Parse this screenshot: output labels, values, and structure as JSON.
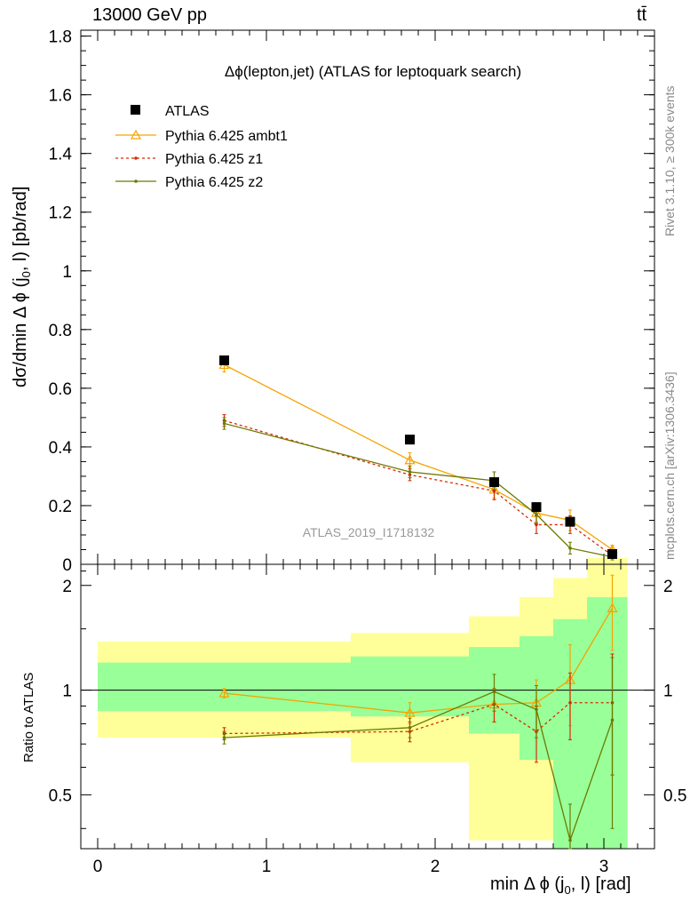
{
  "header": {
    "energy": "13000 GeV pp",
    "process": "tt̄",
    "rivet": "Rivet 3.1.10, ≥ 300k events",
    "site": "mcplots.cern.ch [arXiv:1306.3436]"
  },
  "chart_data": {
    "type": "line",
    "title": "Δϕ(lepton,jet) (ATLAS for leptoquark search)",
    "analysis": "ATLAS_2019_I1718132",
    "xlabel": "min Δ ϕ (j0, l) [rad]",
    "ylabel": "dσ/dmin Δ ϕ (j0, l) [pb/rad]",
    "ratio_ylabel": "Ratio to ATLAS",
    "xlim": [
      -0.1,
      3.3
    ],
    "ylim": [
      0,
      1.82
    ],
    "ratio_ylim": [
      0.35,
      2.3
    ],
    "x_ticks": [
      "0",
      "1",
      "2",
      "3"
    ],
    "y_ticks": [
      "0",
      "0.2",
      "0.4",
      "0.6",
      "0.8",
      "1",
      "1.2",
      "1.4",
      "1.6",
      "1.8"
    ],
    "ratio_ticks": [
      "0.5",
      "1",
      "2"
    ],
    "bins": [
      [
        0,
        1.5
      ],
      [
        1.5,
        2.2
      ],
      [
        2.2,
        2.5
      ],
      [
        2.5,
        2.7
      ],
      [
        2.7,
        2.9
      ],
      [
        2.9,
        3.14
      ]
    ],
    "x": [
      0.75,
      1.85,
      2.35,
      2.6,
      2.8,
      3.05
    ],
    "data": {
      "name": "ATLAS",
      "values": [
        0.695,
        0.425,
        0.28,
        0.195,
        0.145,
        0.035
      ],
      "band_green": [
        [
          0.87,
          1.2
        ],
        [
          0.84,
          1.25
        ],
        [
          0.75,
          1.33
        ],
        [
          0.63,
          1.43
        ],
        [
          0.35,
          1.6
        ],
        [
          0.35,
          1.85
        ]
      ],
      "band_yellow": [
        [
          0.73,
          1.38
        ],
        [
          0.62,
          1.46
        ],
        [
          0.37,
          1.63
        ],
        [
          0.37,
          1.85
        ],
        [
          0.35,
          2.1
        ],
        [
          0.35,
          2.4
        ]
      ]
    },
    "series": [
      {
        "name": "Pythia 6.425 ambt1",
        "color": "#f5a300",
        "values": [
          0.68,
          0.355,
          0.255,
          0.175,
          0.15,
          0.05
        ],
        "errors": [
          0.025,
          0.025,
          0.03,
          0.03,
          0.035,
          0.015
        ],
        "ratio": [
          0.98,
          0.86,
          0.91,
          0.92,
          1.07,
          1.72
        ],
        "ratio_err": [
          0.03,
          0.06,
          0.1,
          0.15,
          0.28,
          0.42
        ]
      },
      {
        "name": "Pythia 6.425 z1",
        "color": "#d42a00",
        "values": [
          0.49,
          0.305,
          0.25,
          0.135,
          0.135,
          0.03
        ],
        "errors": [
          0.02,
          0.02,
          0.03,
          0.03,
          0.03,
          0.01
        ],
        "ratio": [
          0.75,
          0.76,
          0.91,
          0.76,
          0.92,
          0.92
        ],
        "ratio_err": [
          0.03,
          0.05,
          0.1,
          0.14,
          0.2,
          0.35
        ]
      },
      {
        "name": "Pythia 6.425 z2",
        "color": "#6b7a00",
        "values": [
          0.48,
          0.315,
          0.285,
          0.17,
          0.055,
          0.025
        ],
        "errors": [
          0.02,
          0.02,
          0.03,
          0.03,
          0.02,
          0.01
        ],
        "ratio": [
          0.73,
          0.78,
          0.99,
          0.88,
          0.37,
          0.82
        ],
        "ratio_err": [
          0.03,
          0.05,
          0.12,
          0.15,
          0.1,
          0.42
        ]
      }
    ]
  }
}
